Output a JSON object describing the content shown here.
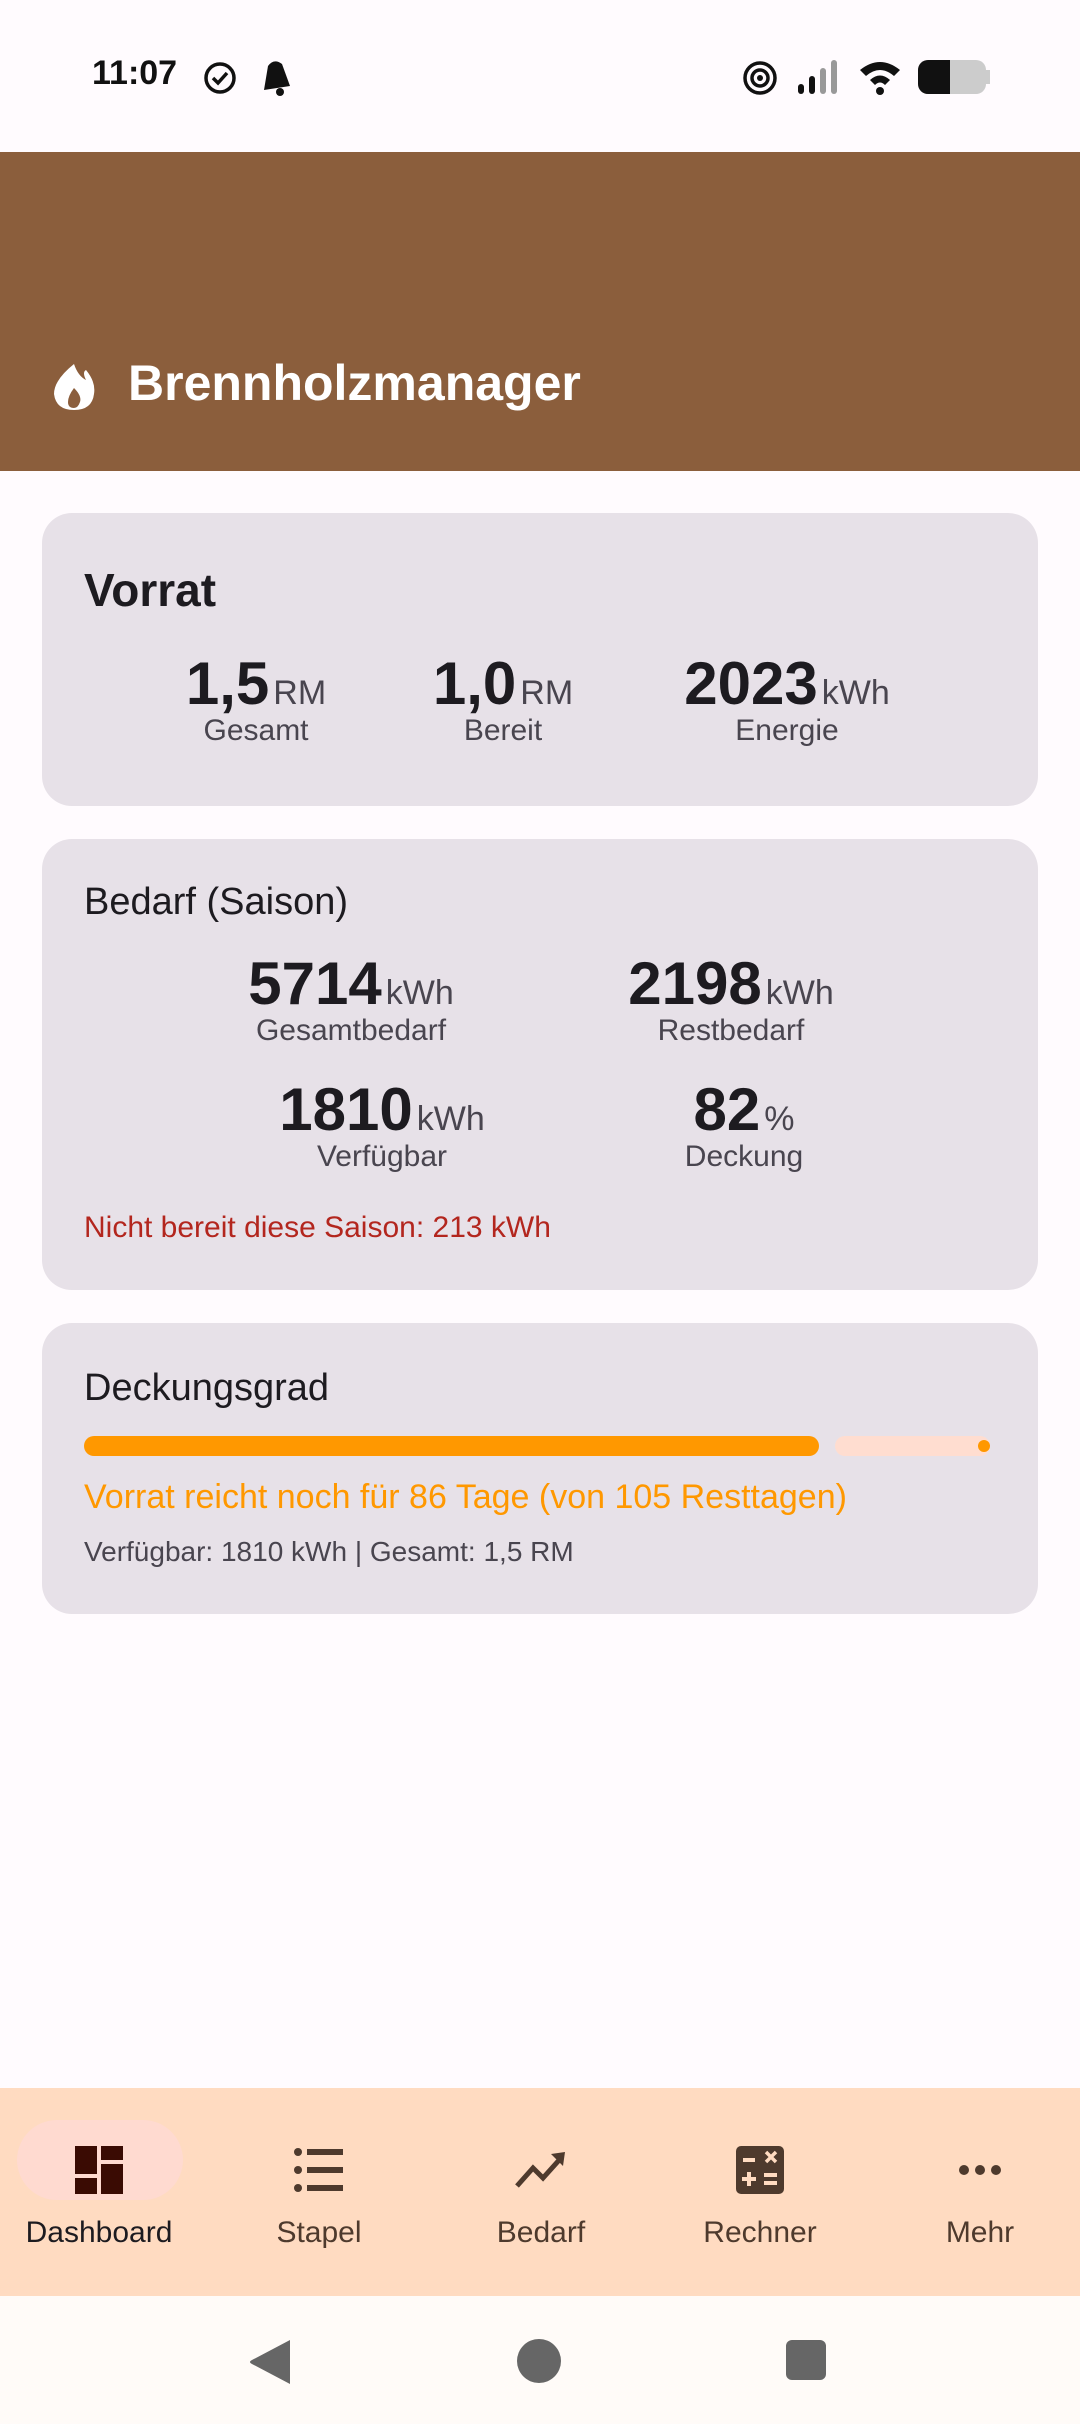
{
  "status_bar": {
    "time": "11:07",
    "icons": [
      "check-circle-icon",
      "notification-bell-icon",
      "hotspot-icon",
      "signal-icon",
      "wifi-icon",
      "battery-icon"
    ]
  },
  "app_bar": {
    "title": "Brennholzmanager",
    "icon": "fire-icon",
    "color": "#8B5E3C"
  },
  "vorrat": {
    "title": "Vorrat",
    "stats": [
      {
        "value": "1,5",
        "unit": "RM",
        "label": "Gesamt"
      },
      {
        "value": "1,0",
        "unit": "RM",
        "label": "Bereit"
      },
      {
        "value": "2023",
        "unit": "kWh",
        "label": "Energie"
      }
    ]
  },
  "bedarf": {
    "title": "Bedarf (Saison)",
    "stats": [
      {
        "value": "5714",
        "unit": "kWh",
        "label": "Gesamtbedarf"
      },
      {
        "value": "2198",
        "unit": "kWh",
        "label": "Restbedarf"
      },
      {
        "value": "1810",
        "unit": "kWh",
        "label": "Verfügbar"
      },
      {
        "value": "82",
        "unit": "%",
        "label": "Deckung"
      }
    ],
    "warning": "Nicht bereit diese Saison: 213 kWh",
    "warning_color": "#B3261E"
  },
  "deckungsgrad": {
    "title": "Deckungsgrad",
    "progress": 0.82,
    "bar_color": "#FF9800",
    "summary": "Vorrat reicht noch für 86 Tage (von 105 Resttagen)",
    "detail": "Verfügbar: 1810 kWh | Gesamt: 1,5 RM"
  },
  "bottom_nav": {
    "selected": "Dashboard",
    "items": [
      {
        "label": "Dashboard",
        "icon": "dashboard-icon"
      },
      {
        "label": "Stapel",
        "icon": "list-icon"
      },
      {
        "label": "Bedarf",
        "icon": "trending-up-icon"
      },
      {
        "label": "Rechner",
        "icon": "calculator-icon"
      },
      {
        "label": "Mehr",
        "icon": "more-horiz-icon"
      }
    ]
  }
}
